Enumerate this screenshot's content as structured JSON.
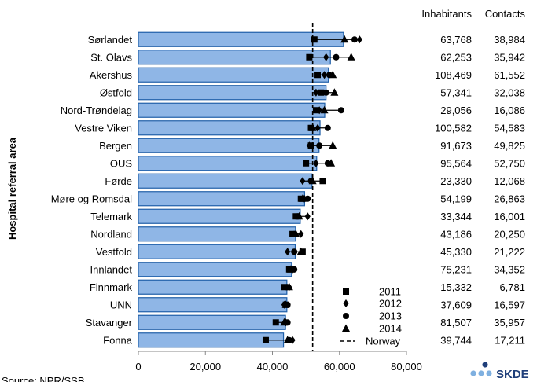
{
  "chart_data": {
    "type": "bar",
    "orientation": "horizontal",
    "ylabel": "Hospital referral area",
    "xlim": [
      0,
      80000
    ],
    "xticks": [
      "0",
      "20,000",
      "40,000",
      "60,000",
      "80,000"
    ],
    "categories": [
      "Sørlandet",
      "St. Olavs",
      "Akershus",
      "Østfold",
      "Nord-Trøndelag",
      "Vestre Viken",
      "Bergen",
      "OUS",
      "Førde",
      "Møre og Romsdal",
      "Telemark",
      "Nordland",
      "Vestfold",
      "Innlandet",
      "Finnmark",
      "UNN",
      "Stavanger",
      "Fonna"
    ],
    "bar_values": [
      61200,
      57300,
      56700,
      56000,
      55600,
      54200,
      53900,
      53200,
      51800,
      49600,
      48300,
      46900,
      46800,
      45700,
      44300,
      44300,
      43900,
      43300
    ],
    "bar_color": "#8fb6e6",
    "bar_edge_color": "#1f5fa8",
    "reference_line": {
      "name": "Norway",
      "value": 52000,
      "style": "dashed"
    },
    "series": [
      {
        "name": "2011",
        "marker": "square",
        "values": [
          52500,
          51000,
          53500,
          54500,
          53000,
          51500,
          51500,
          50000,
          55000,
          48500,
          47000,
          46000,
          49000,
          45000,
          43500,
          44000,
          41000,
          38000
        ]
      },
      {
        "name": "2012",
        "marker": "diamond",
        "values": [
          66000,
          56000,
          55500,
          53000,
          54000,
          53500,
          51000,
          53000,
          49000,
          49500,
          50500,
          48500,
          44500,
          46000,
          45000,
          43500,
          44000,
          46000
        ]
      },
      {
        "name": "2013",
        "marker": "circle",
        "values": [
          64500,
          59000,
          57000,
          56000,
          60500,
          56500,
          54000,
          56500,
          51500,
          50500,
          47500,
          46500,
          46500,
          46500,
          44500,
          44500,
          44500,
          45000
        ]
      },
      {
        "name": "2014",
        "marker": "triangle",
        "values": [
          61500,
          63500,
          58000,
          58500,
          55500,
          52000,
          58000,
          57500,
          52000,
          49000,
          48000,
          47000,
          48500,
          45500,
          45000,
          44000,
          43500,
          44500
        ]
      }
    ],
    "table": {
      "headers": [
        "Inhabitants",
        "Contacts"
      ],
      "inhabitants": [
        "63,768",
        "62,253",
        "108,469",
        "57,341",
        "29,056",
        "100,582",
        "91,673",
        "95,564",
        "23,330",
        "54,199",
        "33,344",
        "43,186",
        "45,330",
        "75,231",
        "15,332",
        "37,609",
        "81,507",
        "39,744"
      ],
      "contacts": [
        "38,984",
        "35,942",
        "61,552",
        "32,038",
        "16,086",
        "54,583",
        "49,825",
        "52,750",
        "12,068",
        "26,863",
        "16,001",
        "20,250",
        "21,222",
        "34,352",
        "6,781",
        "16,597",
        "35,957",
        "17,211"
      ]
    },
    "legend": {
      "placement": "bottom-right",
      "entries": [
        "2011",
        "2012",
        "2013",
        "2014",
        "Norway"
      ]
    },
    "source": "Source: NPR/SSB",
    "logo": "SKDE"
  }
}
